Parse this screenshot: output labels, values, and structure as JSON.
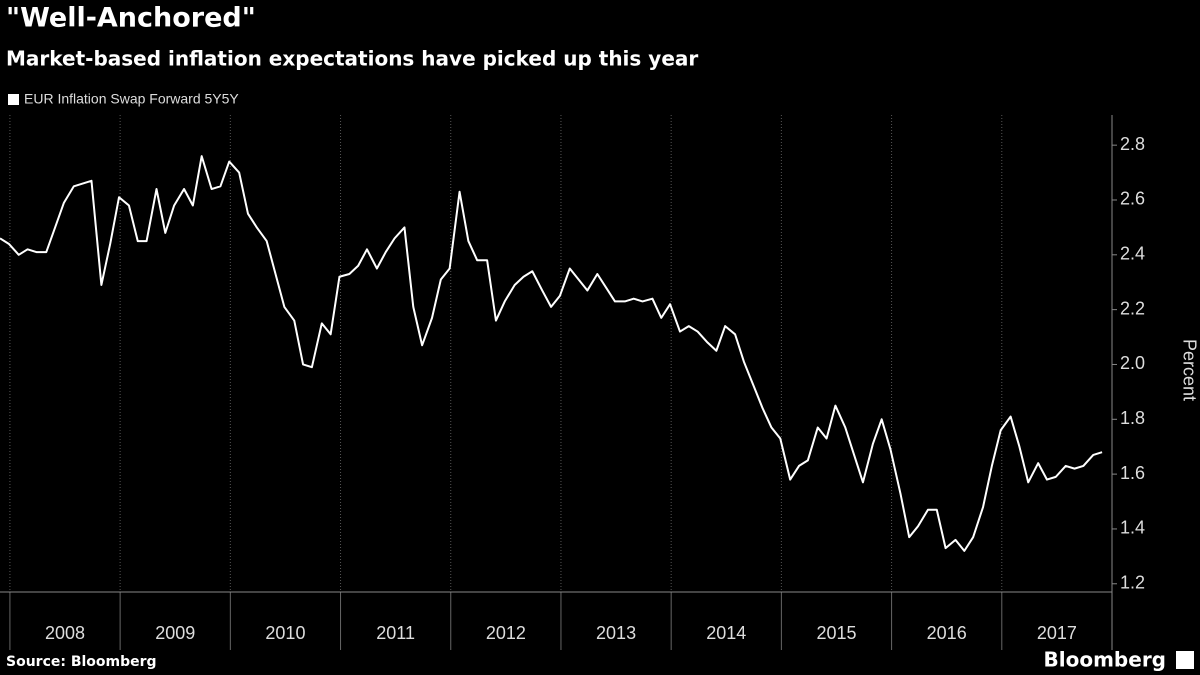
{
  "chart_data": {
    "type": "line",
    "title": "\"Well-Anchored\"",
    "subtitle": "Market-based inflation expectations have picked up this year",
    "y_label": "Percent",
    "source": "Source: Bloomberg",
    "brand": "Bloomberg",
    "x": [
      2007.91,
      2007.99,
      2008.08,
      2008.16,
      2008.24,
      2008.33,
      2008.41,
      2008.49,
      2008.58,
      2008.66,
      2008.74,
      2008.83,
      2008.91,
      2008.99,
      2009.08,
      2009.16,
      2009.24,
      2009.33,
      2009.41,
      2009.49,
      2009.58,
      2009.66,
      2009.74,
      2009.83,
      2009.91,
      2009.99,
      2010.08,
      2010.16,
      2010.24,
      2010.33,
      2010.41,
      2010.49,
      2010.58,
      2010.66,
      2010.74,
      2010.83,
      2010.91,
      2010.99,
      2011.08,
      2011.16,
      2011.24,
      2011.33,
      2011.41,
      2011.49,
      2011.58,
      2011.66,
      2011.74,
      2011.83,
      2011.91,
      2011.99,
      2012.08,
      2012.16,
      2012.24,
      2012.33,
      2012.41,
      2012.49,
      2012.58,
      2012.66,
      2012.74,
      2012.83,
      2012.91,
      2012.99,
      2013.08,
      2013.16,
      2013.24,
      2013.33,
      2013.41,
      2013.49,
      2013.58,
      2013.66,
      2013.74,
      2013.83,
      2013.91,
      2013.99,
      2014.08,
      2014.16,
      2014.24,
      2014.33,
      2014.41,
      2014.49,
      2014.58,
      2014.66,
      2014.74,
      2014.83,
      2014.91,
      2014.99,
      2015.08,
      2015.16,
      2015.24,
      2015.33,
      2015.41,
      2015.49,
      2015.58,
      2015.66,
      2015.74,
      2015.83,
      2015.91,
      2015.99,
      2016.08,
      2016.16,
      2016.24,
      2016.33,
      2016.41,
      2016.49,
      2016.58,
      2016.66,
      2016.74,
      2016.83,
      2016.91,
      2016.99,
      2017.08,
      2017.16,
      2017.24,
      2017.33,
      2017.41,
      2017.49,
      2017.58,
      2017.66,
      2017.74,
      2017.83,
      2017.91
    ],
    "series": [
      {
        "name": "EUR Inflation Swap Forward 5Y5Y",
        "color": "#ffffff",
        "values": [
          2.46,
          2.44,
          2.4,
          2.42,
          2.41,
          2.41,
          2.5,
          2.59,
          2.65,
          2.66,
          2.67,
          2.29,
          2.44,
          2.61,
          2.58,
          2.45,
          2.45,
          2.64,
          2.48,
          2.58,
          2.64,
          2.58,
          2.76,
          2.64,
          2.65,
          2.74,
          2.7,
          2.55,
          2.5,
          2.45,
          2.33,
          2.21,
          2.16,
          2.0,
          1.99,
          2.15,
          2.11,
          2.32,
          2.33,
          2.36,
          2.42,
          2.35,
          2.41,
          2.46,
          2.5,
          2.21,
          2.07,
          2.17,
          2.31,
          2.35,
          2.63,
          2.45,
          2.38,
          2.38,
          2.16,
          2.23,
          2.29,
          2.32,
          2.34,
          2.27,
          2.21,
          2.25,
          2.35,
          2.31,
          2.27,
          2.33,
          2.28,
          2.23,
          2.23,
          2.24,
          2.23,
          2.24,
          2.17,
          2.22,
          2.12,
          2.14,
          2.12,
          2.08,
          2.05,
          2.14,
          2.11,
          2.01,
          1.93,
          1.84,
          1.77,
          1.73,
          1.58,
          1.63,
          1.65,
          1.77,
          1.73,
          1.85,
          1.77,
          1.67,
          1.57,
          1.71,
          1.8,
          1.69,
          1.53,
          1.37,
          1.41,
          1.47,
          1.47,
          1.33,
          1.36,
          1.32,
          1.37,
          1.48,
          1.63,
          1.76,
          1.81,
          1.7,
          1.57,
          1.64,
          1.58,
          1.59,
          1.63,
          1.62,
          1.63,
          1.67,
          1.68
        ]
      }
    ],
    "xlim": [
      2007.91,
      2018
    ],
    "xticks": [
      2008,
      2009,
      2010,
      2011,
      2012,
      2013,
      2014,
      2015,
      2016,
      2017
    ],
    "ylim": [
      1.17,
      2.91
    ],
    "yticks": [
      1.2,
      1.4,
      1.6,
      1.8,
      {
        "value": 2.0,
        "label": "2.0"
      },
      2.2,
      2.4,
      2.6,
      2.8
    ],
    "y_axis_side": "right",
    "grid": "x"
  }
}
